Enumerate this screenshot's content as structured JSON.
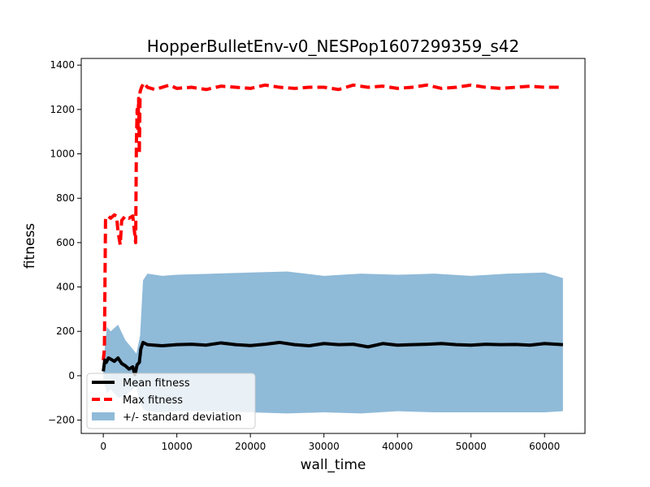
{
  "chart_data": {
    "type": "line",
    "title": "HopperBulletEnv-v0_NESPop1607299359_s42",
    "xlabel": "wall_time",
    "ylabel": "fitness",
    "xlim": [
      -3000,
      65500
    ],
    "ylim": [
      -260,
      1430
    ],
    "xticks": [
      0,
      10000,
      20000,
      30000,
      40000,
      50000,
      60000
    ],
    "yticks": [
      -200,
      0,
      200,
      400,
      600,
      800,
      1000,
      1200,
      1400
    ],
    "grid": false,
    "legend_position": "lower-left",
    "legend": [
      {
        "key": "mean",
        "label": "Mean fitness"
      },
      {
        "key": "max",
        "label": "Max fitness"
      },
      {
        "key": "std",
        "label": "+/- standard deviation"
      }
    ],
    "series": [
      {
        "key": "mean",
        "name": "Mean fitness",
        "color": "#000000",
        "x": [
          0,
          200,
          400,
          700,
          1000,
          1500,
          2000,
          2500,
          3000,
          3500,
          4000,
          4300,
          4600,
          4900,
          5100,
          5400,
          6000,
          8000,
          10000,
          12000,
          14000,
          16000,
          18000,
          20000,
          22000,
          24000,
          26000,
          28000,
          30000,
          32000,
          34000,
          36000,
          38000,
          40000,
          42000,
          44000,
          46000,
          48000,
          50000,
          52000,
          54000,
          56000,
          58000,
          60000,
          62500
        ],
        "y": [
          20,
          70,
          60,
          80,
          75,
          65,
          80,
          55,
          45,
          30,
          40,
          5,
          50,
          60,
          120,
          150,
          140,
          135,
          140,
          142,
          138,
          148,
          140,
          136,
          142,
          150,
          140,
          135,
          145,
          140,
          142,
          130,
          145,
          138,
          140,
          142,
          145,
          140,
          138,
          142,
          140,
          141,
          138,
          145,
          140
        ]
      },
      {
        "key": "max",
        "name": "Max fitness",
        "color": "#ff0000",
        "x": [
          0,
          150,
          300,
          350,
          600,
          1000,
          1500,
          1800,
          2000,
          2300,
          2500,
          3000,
          3500,
          4000,
          4400,
          4500,
          4600,
          4700,
          4800,
          4900,
          5000,
          5200,
          5500,
          6000,
          7000,
          8000,
          9000,
          10000,
          12000,
          14000,
          16000,
          18000,
          20000,
          22000,
          24000,
          26000,
          28000,
          30000,
          32000,
          34000,
          36000,
          38000,
          40000,
          42000,
          44000,
          46000,
          48000,
          50000,
          52000,
          54000,
          56000,
          58000,
          60000,
          62500
        ],
        "y": [
          70,
          120,
          700,
          710,
          720,
          710,
          725,
          720,
          650,
          590,
          700,
          720,
          710,
          720,
          600,
          1050,
          1200,
          1100,
          1250,
          1000,
          1280,
          1300,
          1320,
          1300,
          1290,
          1300,
          1310,
          1295,
          1300,
          1290,
          1305,
          1300,
          1295,
          1310,
          1300,
          1295,
          1300,
          1300,
          1290,
          1310,
          1300,
          1305,
          1295,
          1300,
          1310,
          1295,
          1300,
          1310,
          1300,
          1295,
          1300,
          1305,
          1300,
          1300
        ]
      }
    ],
    "std_band": {
      "key": "std",
      "name": "+/- standard deviation",
      "color": "#8fbad8",
      "x": [
        0,
        500,
        1000,
        2000,
        3000,
        4000,
        4500,
        5000,
        5400,
        6000,
        8000,
        10000,
        15000,
        20000,
        25000,
        30000,
        35000,
        40000,
        45000,
        50000,
        55000,
        60000,
        62500
      ],
      "upper": [
        60,
        220,
        200,
        230,
        160,
        120,
        100,
        180,
        430,
        460,
        450,
        455,
        460,
        465,
        470,
        450,
        460,
        455,
        460,
        450,
        460,
        465,
        440
      ],
      "lower": [
        -20,
        -80,
        -60,
        -100,
        -90,
        -60,
        -50,
        -120,
        -150,
        -160,
        -165,
        -160,
        -160,
        -165,
        -170,
        -165,
        -170,
        -160,
        -165,
        -165,
        -165,
        -165,
        -160
      ]
    }
  }
}
